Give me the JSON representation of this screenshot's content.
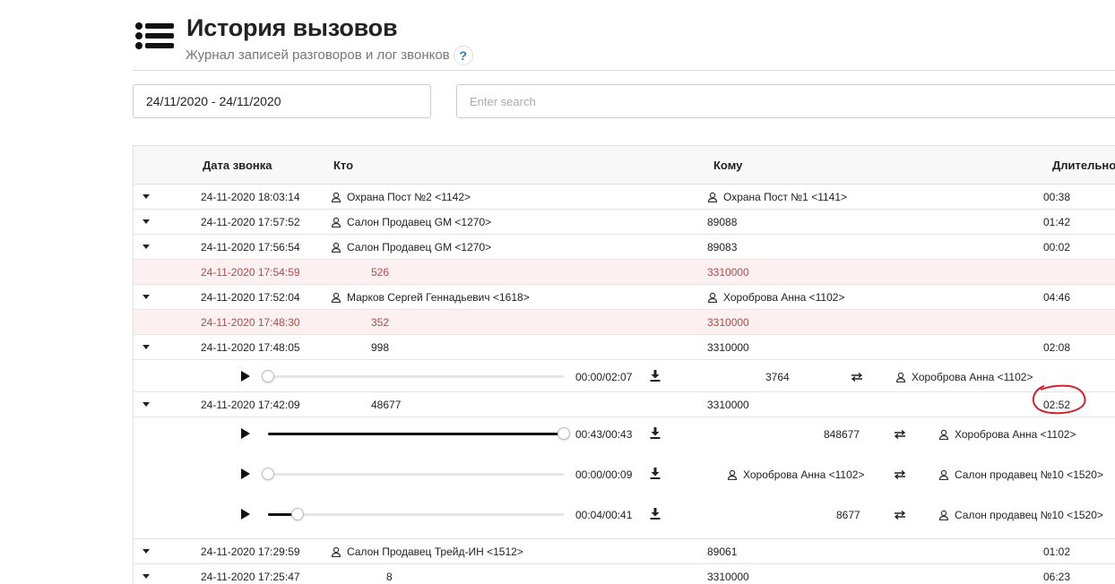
{
  "header": {
    "title": "История вызовов",
    "subtitle": "Журнал записей разговоров и лог звонков",
    "help_label": "?"
  },
  "filters": {
    "date_range": "24/11/2020 - 24/11/2020",
    "search_placeholder": "Enter search"
  },
  "table": {
    "columns": {
      "date": "Дата звонка",
      "from": "Кто",
      "to": "Кому",
      "duration": "Длительно"
    },
    "rows": [
      {
        "date": "24-11-2020 18:03:14",
        "from": "Охрана Пост №2 <1142>",
        "to": "Охрана Пост №1 <1141>",
        "duration": "00:38"
      },
      {
        "date": "24-11-2020 17:57:52",
        "from": "Салон Продавец GM <1270>",
        "to": "89088",
        "duration": "01:42"
      },
      {
        "date": "24-11-2020 17:56:54",
        "from": "Салон Продавец GM <1270>",
        "to": "89083",
        "duration": "00:02"
      },
      {
        "date": "24-11-2020 17:54:59",
        "from": "526",
        "to": "3310000",
        "duration": ""
      },
      {
        "date": "24-11-2020 17:52:04",
        "from": "Марков Сергей Геннадьевич <1618>",
        "to": "Хороброва Анна <1102>",
        "duration": "04:46"
      },
      {
        "date": "24-11-2020 17:48:30",
        "from": "352",
        "to": "3310000",
        "duration": ""
      },
      {
        "date": "24-11-2020 17:48:05",
        "from": "998",
        "to": "3310000",
        "duration": "02:08"
      },
      {
        "date": "24-11-2020 17:42:09",
        "from": "48677",
        "to": "3310000",
        "duration": "02:52"
      },
      {
        "date": "24-11-2020 17:29:59",
        "from": "Салон Продавец Трейд-ИН <1512>",
        "to": "89061",
        "duration": "01:02"
      },
      {
        "date": "24-11-2020 17:25:47",
        "from": "8",
        "to": "3310000",
        "duration": "06:23"
      }
    ],
    "recordings": [
      {
        "time": "00:00/02:07",
        "progress": 0.0,
        "from": "3764",
        "to": "Хороброва Анна <1102>"
      },
      {
        "time": "00:43/00:43",
        "progress": 1.0,
        "from": "848677",
        "to": "Хороброва Анна <1102>"
      },
      {
        "time": "00:00/00:09",
        "progress": 0.0,
        "from": "Хороброва Анна <1102>",
        "to": "Салон продавец №10 <1520>"
      },
      {
        "time": "00:04/00:41",
        "progress": 0.1,
        "from": "8677",
        "to": "Салон продавец №10 <1520>"
      }
    ]
  },
  "colors": {
    "missed_row_bg": "#fdf0f0",
    "missed_text": "#b24a4a",
    "annotation": "#d4202a"
  }
}
